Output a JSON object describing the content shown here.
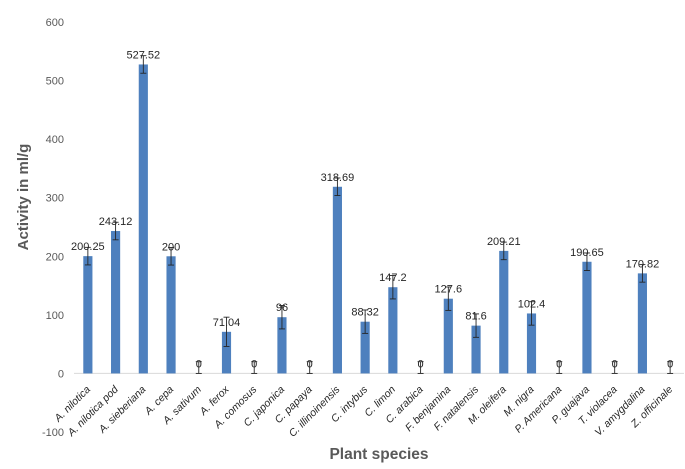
{
  "chart_data": {
    "type": "bar",
    "xlabel": "Plant species",
    "ylabel": "Activity in ml/g",
    "ylim": [
      -100,
      600
    ],
    "yticks": [
      -100,
      0,
      100,
      200,
      300,
      400,
      500,
      600
    ],
    "grid": false,
    "legend": "none",
    "bar_color": "#4e80be",
    "categories": [
      "A. nilotica",
      "A. nilotica pod",
      "A. sieberiana",
      "A. cepa",
      "A. sativum",
      "A. ferox",
      "A. comosus",
      "C. japonica",
      "C. papaya",
      "C. illinoinensis",
      "C. intybus",
      "C. limon",
      "C. arabica",
      "F. benjamina",
      "F. natalensis",
      "M. oleifera",
      "M. nigra",
      "P. Americana",
      "P. guajava",
      "T. violacea",
      "V. amygdalina",
      "Z. officinale"
    ],
    "values": [
      200.25,
      243.12,
      527.52,
      200,
      0,
      71.04,
      0,
      96,
      0,
      318.69,
      88.32,
      147.2,
      0,
      127.6,
      81.6,
      209.21,
      102.4,
      0,
      190.65,
      0,
      170.82,
      0
    ],
    "data_labels": [
      "200.25",
      "243.12",
      "527.52",
      "200",
      "0",
      "71.04",
      "0",
      "96",
      "0",
      "318.69",
      "88.32",
      "147.2",
      "0",
      "127.6",
      "81.6",
      "209.21",
      "102.4",
      "0",
      "190.65",
      "0",
      "170.82",
      "0"
    ],
    "error": [
      15,
      15,
      15,
      15,
      20,
      25,
      20,
      20,
      20,
      15,
      20,
      20,
      20,
      20,
      20,
      15,
      20,
      20,
      15,
      20,
      15,
      20
    ]
  }
}
